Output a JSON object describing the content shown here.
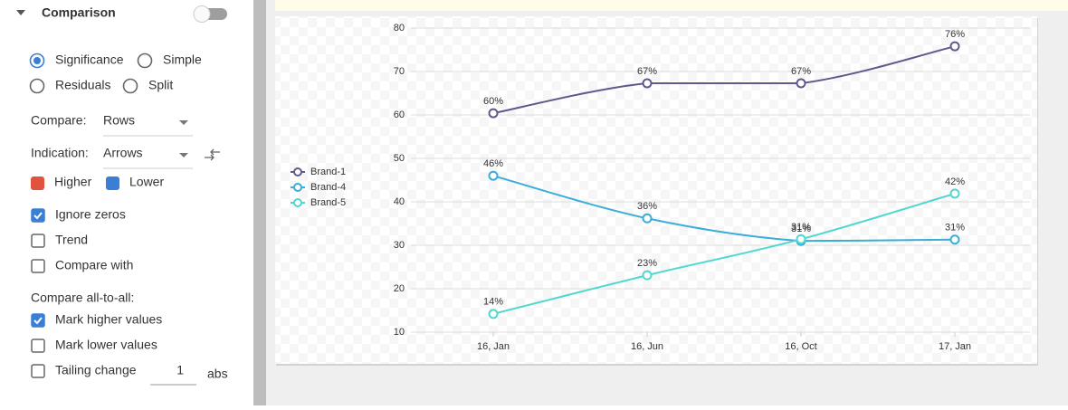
{
  "panel": {
    "section_title": "Comparison",
    "radios": [
      {
        "label": "Significance",
        "checked": true
      },
      {
        "label": "Simple",
        "checked": false
      },
      {
        "label": "Residuals",
        "checked": false
      },
      {
        "label": "Split",
        "checked": false
      }
    ],
    "compare": {
      "label": "Compare:",
      "value": "Rows"
    },
    "indication": {
      "label": "Indication:",
      "value": "Arrows"
    },
    "colors": [
      {
        "label": "Higher",
        "color": "#e0533d"
      },
      {
        "label": "Lower",
        "color": "#3a7fd5"
      }
    ],
    "checkboxes": [
      {
        "label": "Ignore zeros",
        "checked": true
      },
      {
        "label": "Trend",
        "checked": false
      },
      {
        "label": "Compare with",
        "checked": false
      }
    ],
    "all_to_all": {
      "label": "Compare all-to-all:",
      "checkboxes": [
        {
          "label": "Mark higher values",
          "checked": true
        },
        {
          "label": "Mark lower values",
          "checked": false
        }
      ]
    },
    "tailing": {
      "label": "Tailing change",
      "checked": false,
      "value": "1",
      "unit": "abs"
    }
  },
  "chart_data": {
    "type": "line",
    "categories": [
      "16, Jan",
      "16, Jun",
      "16, Oct",
      "17, Jan"
    ],
    "series": [
      {
        "name": "Brand-1",
        "color": "#5e5a8c",
        "values": [
          60.4,
          67.3,
          67.3,
          75.8
        ],
        "value_labels": [
          "60%",
          "67%",
          "67%",
          "76%"
        ]
      },
      {
        "name": "Brand-4",
        "color": "#3aaed6",
        "values": [
          46,
          36.2,
          31,
          31.3
        ],
        "value_labels": [
          "46%",
          "36%",
          "31%",
          "31%"
        ]
      },
      {
        "name": "Brand-5",
        "color": "#4fd8d0",
        "values": [
          14.2,
          23.1,
          31.4,
          41.9
        ],
        "value_labels": [
          "14%",
          "23%",
          "31%",
          "42%"
        ]
      }
    ],
    "ylim": [
      10,
      80
    ],
    "yticks": [
      10,
      20,
      30,
      40,
      50,
      60,
      70,
      80
    ],
    "grid": true,
    "legend": "left"
  }
}
